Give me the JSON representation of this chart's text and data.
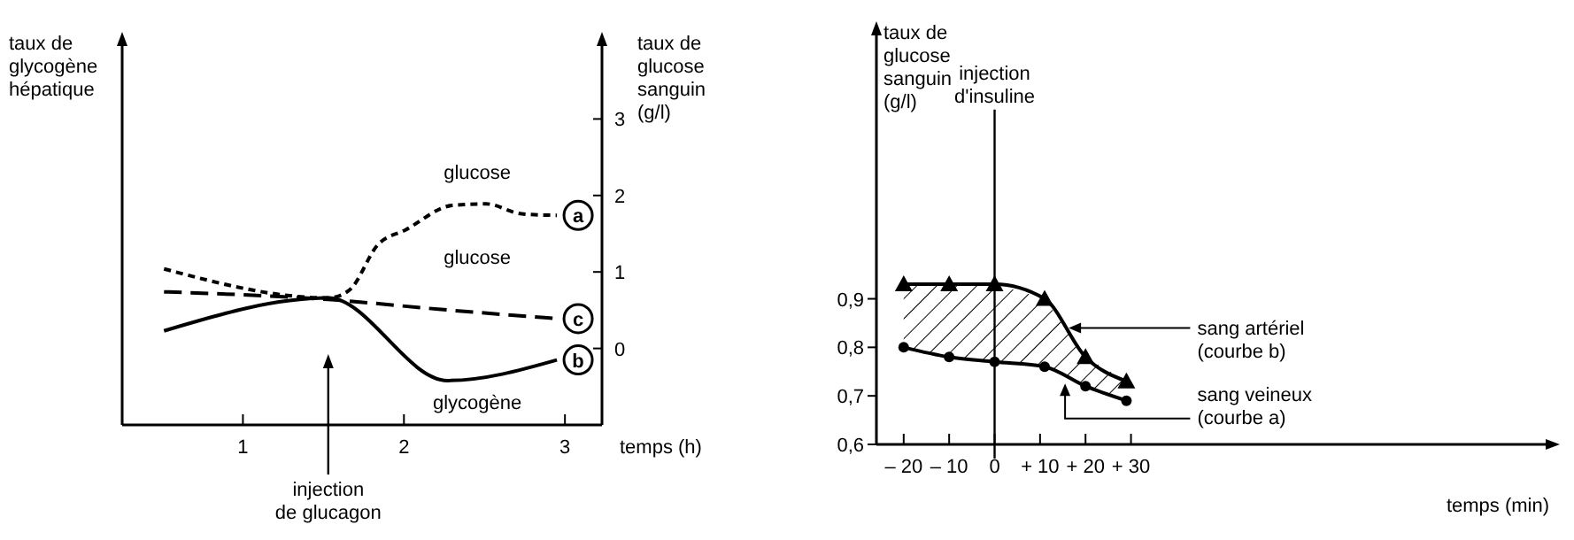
{
  "chart_data": [
    {
      "type": "line",
      "xlabel": "temps (h)",
      "ylabel": "taux de glycogène hépatique",
      "y2label": "taux de glucose sanguin (g/l)",
      "xlim": [
        0.25,
        3.23
      ],
      "xticks": [
        1,
        2,
        3
      ],
      "y2lim": [
        -1,
        4
      ],
      "y2ticks": [
        0,
        1,
        2,
        3
      ],
      "legend": "right",
      "grid": false,
      "marker": "none",
      "series": [
        {
          "name": "a",
          "axis": "y2",
          "line_style": "dotted",
          "color": "#000000",
          "x": [
            0.51,
            1.53,
            1.66,
            1.84,
            2.01,
            2.3,
            2.51,
            2.73,
            2.95
          ],
          "values": [
            1.04,
            0.66,
            0.76,
            1.36,
            1.55,
            1.87,
            1.89,
            1.76,
            1.74
          ]
        },
        {
          "name": "b",
          "axis": "y2",
          "line_style": "solid",
          "color": "#000000",
          "x": [
            0.51,
            1.53,
            2.27,
            2.95
          ],
          "values": [
            0.23,
            0.66,
            -0.42,
            -0.15
          ]
        },
        {
          "name": "c",
          "axis": "y2",
          "line_style": "dashed",
          "color": "#000000",
          "x": [
            0.51,
            1.53,
            2.23,
            2.95
          ],
          "values": [
            0.74,
            0.64,
            0.51,
            0.39
          ]
        }
      ],
      "annotations": [
        "glucose",
        "glucose",
        "glycogène",
        {
          "text": "injection de glucagon",
          "x": 1.53
        }
      ]
    },
    {
      "type": "line",
      "xlabel": "temps (min)",
      "ylabel": "taux de glucose sanguin (g/l)",
      "xlim": [
        -26,
        122
      ],
      "xticks": [
        {
          "value": -20,
          "label": "– 20"
        },
        {
          "value": -10,
          "label": "– 10"
        },
        {
          "value": 0,
          "label": "0"
        },
        {
          "value": 10,
          "label": "+ 10"
        },
        {
          "value": 20,
          "label": "+ 20"
        },
        {
          "value": 30,
          "label": "+ 30"
        }
      ],
      "ylim": [
        0.6,
        1.45
      ],
      "yticks": [
        {
          "value": 0.6,
          "label": "0,6"
        },
        {
          "value": 0.7,
          "label": "0,7"
        },
        {
          "value": 0.8,
          "label": "0,8"
        },
        {
          "value": 0.9,
          "label": "0,9"
        }
      ],
      "grid": false,
      "ref_lines": [
        {
          "axis": "x",
          "value": 0,
          "label": "injection d'insuline"
        }
      ],
      "series": [
        {
          "name": "sang artériel (courbe b)",
          "color": "#000000",
          "marker": "triangle",
          "line_style": "solid",
          "x": [
            -20,
            -10,
            0,
            11,
            20,
            29
          ],
          "values": [
            0.93,
            0.93,
            0.93,
            0.9,
            0.78,
            0.73
          ],
          "lower": [
            0.8,
            0.78,
            0.77,
            0.76,
            0.72,
            0.69
          ],
          "upper": [
            0.93,
            0.93,
            0.93,
            0.9,
            0.78,
            0.73
          ]
        },
        {
          "name": "sang veineux (courbe a)",
          "color": "#000000",
          "marker": "circle",
          "line_style": "solid",
          "x": [
            -20,
            -10,
            0,
            11,
            20,
            29
          ],
          "values": [
            0.8,
            0.78,
            0.77,
            0.76,
            0.72,
            0.69
          ]
        }
      ]
    }
  ]
}
